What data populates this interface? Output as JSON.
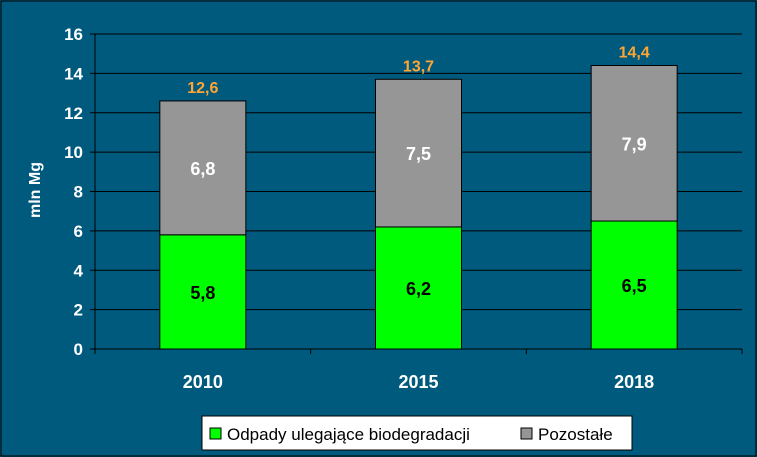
{
  "chart_data": {
    "type": "bar",
    "stacked": true,
    "categories": [
      "2010",
      "2015",
      "2018"
    ],
    "series": [
      {
        "name": "Odpady ulegające biodegradacji",
        "values": [
          5.8,
          6.2,
          6.5
        ],
        "color": "#00ff00"
      },
      {
        "name": "Pozostałe",
        "values": [
          6.8,
          7.5,
          7.9
        ],
        "color": "#969696"
      }
    ],
    "totals": [
      12.6,
      13.7,
      14.4
    ],
    "total_label_color": "#ffa533",
    "ylabel": "mln Mg",
    "ylim": [
      0,
      16
    ],
    "yticks": [
      0,
      2,
      4,
      6,
      8,
      10,
      12,
      14,
      16
    ],
    "grid": true,
    "legend_position": "bottom-right",
    "number_format": "comma-decimal",
    "background_color": "#005a7d",
    "text_color": "#ffffff"
  }
}
